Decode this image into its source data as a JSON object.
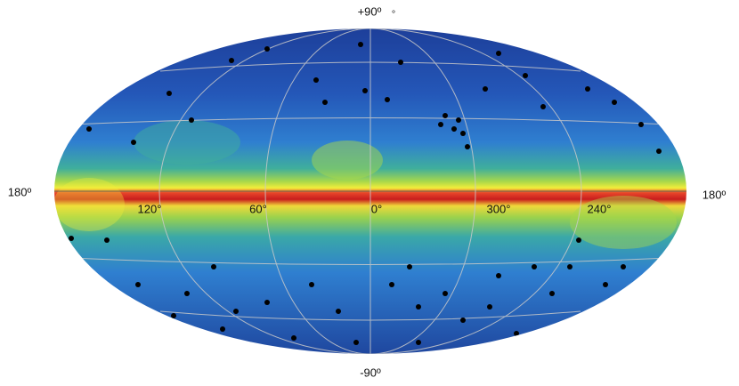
{
  "map": {
    "labels": {
      "north_pole": "+90º",
      "north_mark": "∘",
      "south_pole": "-90º",
      "left_edge": "180º",
      "right_edge": "180º",
      "lon_120": "120°",
      "lon_60": "60°",
      "lon_0": "0°",
      "lon_300": "300°",
      "lon_240": "240°"
    }
  }
}
